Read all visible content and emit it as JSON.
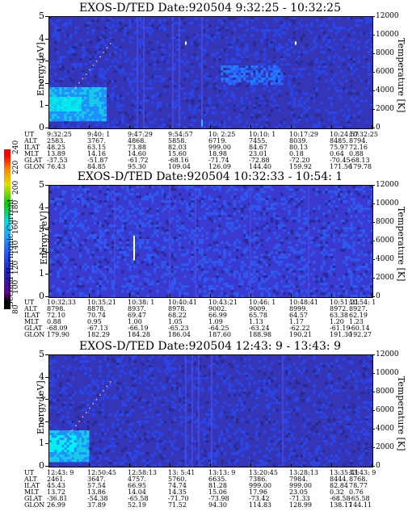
{
  "panels": [
    {
      "title": "EXOS-D/TED   Date:920504   9:32:25 - 10:32:25",
      "y_label": "Energy [eV]",
      "right_label": "Temperature [K]",
      "y_ticks": [
        "0",
        "1",
        "2",
        "3",
        "4",
        "5"
      ],
      "right_ticks": [
        "0",
        "2000",
        "4000",
        "6000",
        "8000",
        "10000",
        "12000"
      ],
      "row_labels": [
        "UT",
        "ALT",
        "ILAT",
        "MLT",
        "GLAT",
        "GLON"
      ],
      "columns": [
        [
          "9:32:25",
          "2583.",
          "48.25",
          "13.89",
          "-37.53",
          "76.43"
        ],
        [
          "9:40: 1",
          "3767.",
          "63.15",
          "14.16",
          "-51.87",
          "84.85"
        ],
        [
          "9:47:29",
          "4868.",
          "73.88",
          "14.60",
          "-61.72",
          "95.30"
        ],
        [
          "9:54:57",
          "5858.",
          "82.03",
          "15.60",
          "-68.16",
          "109.04"
        ],
        [
          "10: 2:25",
          "6719.",
          "999.00",
          "18.98",
          "-71.74",
          "126.09"
        ],
        [
          "10:10: 1",
          "7455.",
          "84.67",
          "23.01",
          "-72.88",
          "144.40"
        ],
        [
          "10:17:29",
          "8039.",
          "80.13",
          "0.18",
          "-72.20",
          "159.92"
        ],
        [
          "10:24:57",
          "8485.",
          "75.97",
          "0.64",
          "-70.45",
          "171.56"
        ],
        [
          "10:32:25",
          "8794.",
          "72.16",
          "0.88",
          "-68.13",
          "179.78"
        ]
      ]
    },
    {
      "title": "EXOS-D/TED   Date:920504   10:32:33 - 10:54: 1",
      "y_label": "Energy [eV]",
      "right_label": "Temperature [K]",
      "y_ticks": [
        "0",
        "1",
        "2",
        "3",
        "4",
        "5"
      ],
      "right_ticks": [
        "0",
        "2000",
        "4000",
        "6000",
        "8000",
        "10000",
        "12000"
      ],
      "row_labels": [
        "UT",
        "ALT",
        "ILAT",
        "MLT",
        "GLAT",
        "GLON"
      ],
      "columns": [
        [
          "10:32:33",
          "8798.",
          "72.10",
          "0.88",
          "-68.09",
          "179.90"
        ],
        [
          "10:35:21",
          "8878.",
          "70.74",
          "0.95",
          "-67.13",
          "182.29"
        ],
        [
          "10:38: 1",
          "8937.",
          "69.47",
          "1.00",
          "-66.19",
          "184.28"
        ],
        [
          "10:40:41",
          "8978.",
          "68.22",
          "1.05",
          "-65.23",
          "186.04"
        ],
        [
          "10:43:21",
          "9002.",
          "66.99",
          "1.09",
          "-64.25",
          "187.60"
        ],
        [
          "10:46: 1",
          "9009.",
          "65.78",
          "1.13",
          "-63.24",
          "188.98"
        ],
        [
          "10:48:41",
          "8999.",
          "64.57",
          "1.17",
          "-62.22",
          "190.21"
        ],
        [
          "10:51:21",
          "8972.",
          "63.38",
          "1.20",
          "-61.19",
          "191.30"
        ],
        [
          "10:54: 1",
          "8927.",
          "62.19",
          "1.23",
          "-60.14",
          "192.27"
        ]
      ]
    },
    {
      "title": "EXOS-D/TED   Date:920504   12:43: 9 - 13:43: 9",
      "y_label": "Energy [eV]",
      "right_label": "Temperature [K]",
      "y_ticks": [
        "0",
        "1",
        "2",
        "3",
        "4",
        "5"
      ],
      "right_ticks": [
        "0",
        "2000",
        "4000",
        "6000",
        "8000",
        "10000",
        "12000"
      ],
      "row_labels": [
        "UT",
        "ALT",
        "ILAT",
        "MLT",
        "GLAT",
        "GLON"
      ],
      "columns": [
        [
          "12:43: 9",
          "2461.",
          "45.43",
          "13.72",
          "-36.81",
          "26.99"
        ],
        [
          "12:50:45",
          "3647.",
          "57.54",
          "13.86",
          "-54.38",
          "37.89"
        ],
        [
          "12:58:13",
          "4757.",
          "66.95",
          "14.04",
          "-65.58",
          "52.19"
        ],
        [
          "13: 5:41",
          "5760.",
          "74.74",
          "14.35",
          "-71.70",
          "71.52"
        ],
        [
          "13:13: 9",
          "6635.",
          "81.28",
          "15.06",
          "-73.98",
          "94.30"
        ],
        [
          "13:20:45",
          "7386.",
          "999.00",
          "17.96",
          "-73.42",
          "114.83"
        ],
        [
          "13:28:13",
          "7984.",
          "999.00",
          "23.05",
          "-71.33",
          "128.99"
        ],
        [
          "13:35:41",
          "8444.",
          "82.84",
          "0.32",
          "-68.58",
          "138.17"
        ],
        [
          "13:43: 9",
          "8768.",
          "78.77",
          "0.76",
          "-65.58",
          "144.11"
        ]
      ]
    }
  ],
  "colorbar": {
    "label": "Second Harmonic Current",
    "ticks": [
      "80",
      "100",
      "120",
      "140",
      "160",
      "180",
      "200",
      "220",
      "240"
    ]
  },
  "chart_data": [
    {
      "type": "heatmap",
      "title": "EXOS-D/TED   Date:920504   9:32:25 - 10:32:25",
      "ylabel": "Energy [eV]",
      "ylim": [
        0,
        5
      ],
      "y2label": "Temperature [K]",
      "y2lim": [
        0,
        12000
      ],
      "x": [
        "9:32:25",
        "9:40: 1",
        "9:47:29",
        "9:54:57",
        "10: 2:25",
        "10:10: 1",
        "10:17:29",
        "10:24:57",
        "10:32:25"
      ]
    },
    {
      "type": "heatmap",
      "title": "EXOS-D/TED   Date:920504   10:32:33 - 10:54: 1",
      "ylabel": "Energy [eV]",
      "ylim": [
        0,
        5
      ],
      "y2label": "Temperature [K]",
      "y2lim": [
        0,
        12000
      ],
      "x": [
        "10:32:33",
        "10:35:21",
        "10:38: 1",
        "10:40:41",
        "10:43:21",
        "10:46: 1",
        "10:48:41",
        "10:51:21",
        "10:54: 1"
      ]
    },
    {
      "type": "heatmap",
      "title": "EXOS-D/TED   Date:920504   12:43: 9 - 13:43: 9",
      "ylabel": "Energy [eV]",
      "ylim": [
        0,
        5
      ],
      "y2label": "Temperature [K]",
      "y2lim": [
        0,
        12000
      ],
      "x": [
        "12:43: 9",
        "12:50:45",
        "12:58:13",
        "13: 5:41",
        "13:13: 9",
        "13:20:45",
        "13:28:13",
        "13:35:41",
        "13:43: 9"
      ]
    }
  ]
}
